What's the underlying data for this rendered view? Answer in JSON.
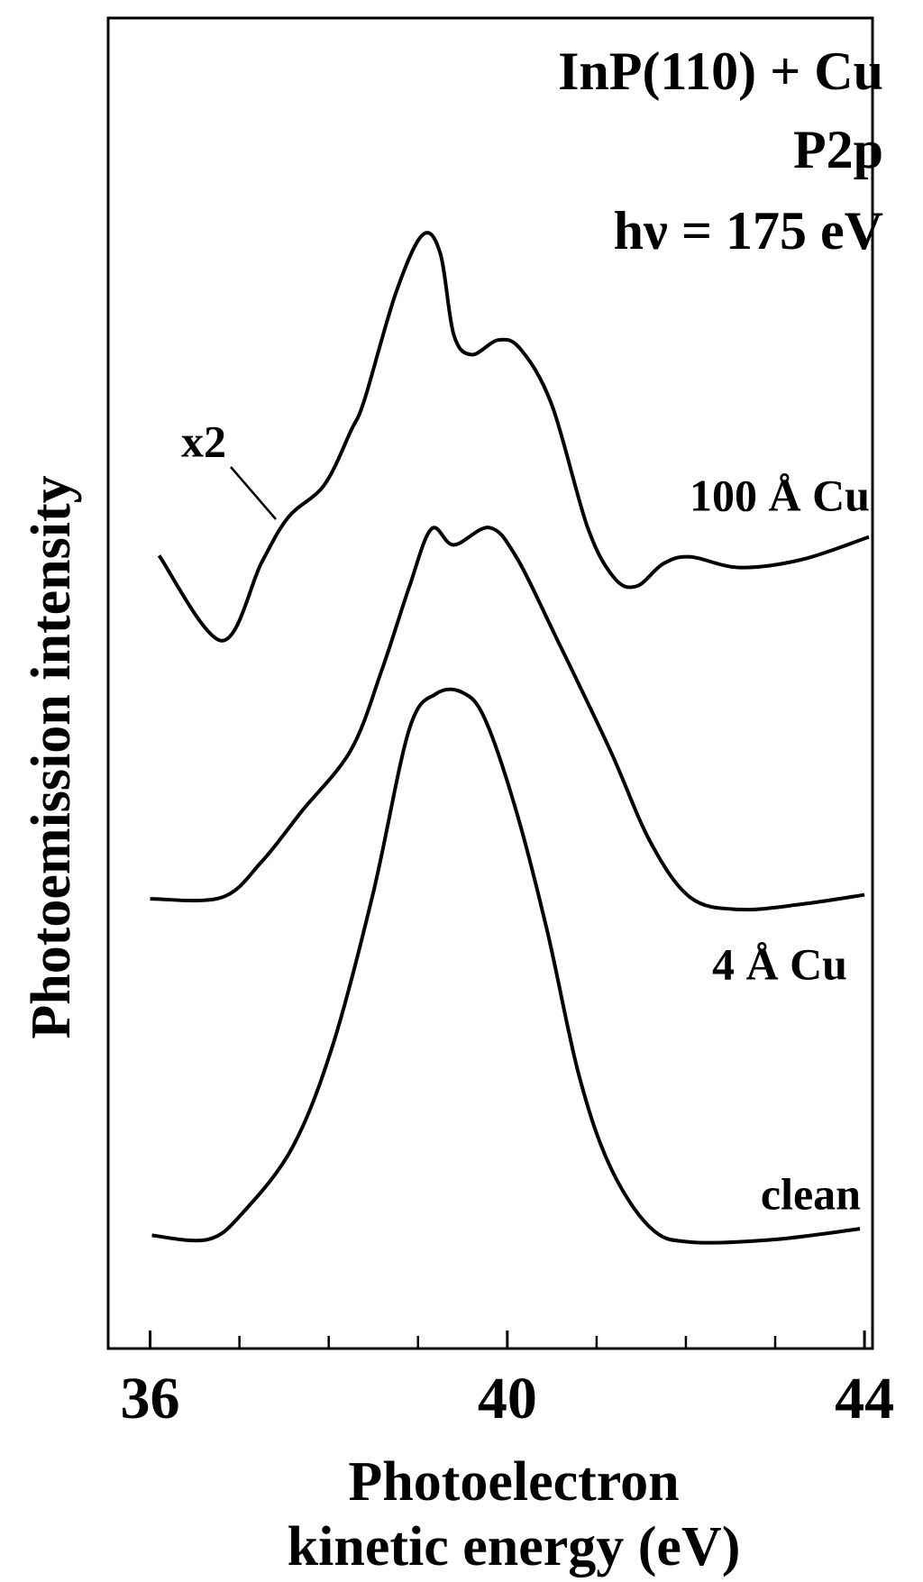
{
  "chart_data": {
    "type": "line",
    "title": [
      "InP(110) + Cu",
      "P2p",
      "hν = 175 eV"
    ],
    "xlabel": [
      "Photoelectron",
      "kinetic energy (eV)"
    ],
    "ylabel": "Photoemission intensity",
    "annotations": [
      "x2"
    ],
    "xlim": [
      35.53,
      44.09
    ],
    "ylim": [
      0,
      100
    ],
    "xticks": [
      36,
      40,
      44
    ],
    "xminor_ticks": [
      37,
      38,
      39,
      41,
      42,
      43
    ],
    "grid": false,
    "series": [
      {
        "name": "100 Å Cu",
        "color": "#000000",
        "x": [
          36.1,
          36.8,
          37.25,
          37.55,
          37.95,
          38.25,
          38.4,
          38.75,
          39.05,
          39.25,
          39.4,
          39.6,
          39.9,
          40.15,
          40.5,
          40.9,
          41.2,
          41.45,
          41.75,
          42.05,
          42.6,
          43.3,
          44.05
        ],
        "values": [
          59.6,
          53.2,
          59.1,
          62.5,
          64.9,
          69.0,
          71.3,
          79.3,
          83.7,
          82.3,
          76.2,
          74.7,
          75.8,
          75.1,
          70.9,
          61.7,
          57.9,
          57.3,
          59.0,
          59.5,
          58.7,
          59.3,
          61.0
        ]
      },
      {
        "name": "4 Å Cu",
        "color": "#000000",
        "x": [
          36.0,
          36.8,
          37.25,
          37.7,
          38.25,
          38.6,
          38.9,
          39.15,
          39.4,
          39.8,
          40.1,
          40.55,
          41.15,
          41.6,
          42.05,
          42.6,
          43.3,
          44.0
        ],
        "values": [
          33.8,
          33.9,
          36.6,
          40.4,
          45.0,
          51.1,
          57.2,
          61.6,
          60.4,
          61.7,
          59.5,
          53.4,
          45.0,
          38.1,
          33.9,
          33.0,
          33.4,
          34.1
        ]
      },
      {
        "name": "clean",
        "color": "#000000",
        "x": [
          36.02,
          36.65,
          37.05,
          37.6,
          38.05,
          38.5,
          38.9,
          39.2,
          39.5,
          39.75,
          40.1,
          40.45,
          40.8,
          41.15,
          41.6,
          42.05,
          43.0,
          43.95
        ],
        "values": [
          8.5,
          8.2,
          10.3,
          15.2,
          22.9,
          34.3,
          46.5,
          49.2,
          49.3,
          47.3,
          40.4,
          31.3,
          20.6,
          13.7,
          9.1,
          8.0,
          8.2,
          9.0
        ]
      }
    ]
  }
}
